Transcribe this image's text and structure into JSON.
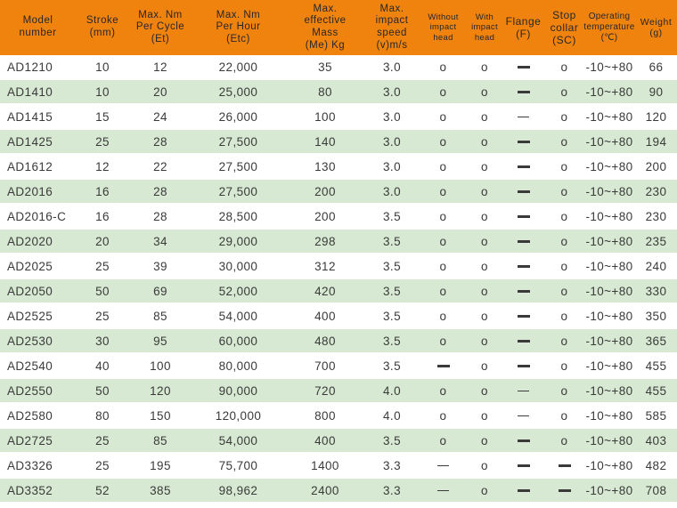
{
  "colors": {
    "header_bg": "#F0830D",
    "header_text": "#26272E",
    "body_text": "#3A3A3A",
    "row_alt_bg": "#D7E9D2",
    "row_bg": "#FFFFFF"
  },
  "marks": {
    "o": "o",
    "dash": "—",
    "dash_thin": "—"
  },
  "table": {
    "columns": [
      {
        "id": "model-number",
        "label": "Model\nnumber"
      },
      {
        "id": "stroke",
        "label": "Stroke\n(mm)"
      },
      {
        "id": "max-nm-per-cycle",
        "label": "Max. Nm\nPer Cycle\n(Et)"
      },
      {
        "id": "max-nm-per-hour",
        "label": "Max. Nm\nPer Hour\n(Etc)"
      },
      {
        "id": "max-effective-mass",
        "label": "Max.\neffective\nMass\n(Me) Kg"
      },
      {
        "id": "max-impact-speed",
        "label": "Max.\nimpact\nspeed\n(v)m/s"
      },
      {
        "id": "without-impact-head",
        "label": "Without\nimpact\nhead"
      },
      {
        "id": "with-impact-head",
        "label": "With\nimpact\nhead"
      },
      {
        "id": "flange",
        "label": "Flange\n(F)"
      },
      {
        "id": "stop-collar",
        "label": "Stop\ncollar\n(SC)"
      },
      {
        "id": "operating-temperature",
        "label": "Operating\ntemperature\n(℃)"
      },
      {
        "id": "weight",
        "label": "Weight\n(g)"
      }
    ],
    "rows": [
      [
        "AD1210",
        "10",
        "12",
        "22,000",
        "35",
        "3.0",
        "o",
        "o",
        "dash",
        "o",
        "-10~+80",
        "66"
      ],
      [
        "AD1410",
        "10",
        "20",
        "25,000",
        "80",
        "3.0",
        "o",
        "o",
        "dash",
        "o",
        "-10~+80",
        "90"
      ],
      [
        "AD1415",
        "15",
        "24",
        "26,000",
        "100",
        "3.0",
        "o",
        "o",
        "dash_thin",
        "o",
        "-10~+80",
        "120"
      ],
      [
        "AD1425",
        "25",
        "28",
        "27,500",
        "140",
        "3.0",
        "o",
        "o",
        "dash",
        "o",
        "-10~+80",
        "194"
      ],
      [
        "AD1612",
        "12",
        "22",
        "27,500",
        "130",
        "3.0",
        "o",
        "o",
        "dash",
        "o",
        "-10~+80",
        "200"
      ],
      [
        "AD2016",
        "16",
        "28",
        "27,500",
        "200",
        "3.0",
        "o",
        "o",
        "dash",
        "o",
        "-10~+80",
        "230"
      ],
      [
        "AD2016-C",
        "16",
        "28",
        "28,500",
        "200",
        "3.5",
        "o",
        "o",
        "dash",
        "o",
        "-10~+80",
        "230"
      ],
      [
        "AD2020",
        "20",
        "34",
        "29,000",
        "298",
        "3.5",
        "o",
        "o",
        "dash",
        "o",
        "-10~+80",
        "235"
      ],
      [
        "AD2025",
        "25",
        "39",
        "30,000",
        "312",
        "3.5",
        "o",
        "o",
        "dash",
        "o",
        "-10~+80",
        "240"
      ],
      [
        "AD2050",
        "50",
        "69",
        "52,000",
        "420",
        "3.5",
        "o",
        "o",
        "dash",
        "o",
        "-10~+80",
        "330"
      ],
      [
        "AD2525",
        "25",
        "85",
        "54,000",
        "400",
        "3.5",
        "o",
        "o",
        "dash",
        "o",
        "-10~+80",
        "350"
      ],
      [
        "AD2530",
        "30",
        "95",
        "60,000",
        "480",
        "3.5",
        "o",
        "o",
        "dash",
        "o",
        "-10~+80",
        "365"
      ],
      [
        "AD2540",
        "40",
        "100",
        "80,000",
        "700",
        "3.5",
        "dash",
        "o",
        "dash",
        "o",
        "-10~+80",
        "455"
      ],
      [
        "AD2550",
        "50",
        "120",
        "90,000",
        "720",
        "4.0",
        "o",
        "o",
        "dash_thin",
        "o",
        "-10~+80",
        "455"
      ],
      [
        "AD2580",
        "80",
        "150",
        "120,000",
        "800",
        "4.0",
        "o",
        "o",
        "dash_thin",
        "o",
        "-10~+80",
        "585"
      ],
      [
        "AD2725",
        "25",
        "85",
        "54,000",
        "400",
        "3.5",
        "o",
        "o",
        "dash",
        "o",
        "-10~+80",
        "403"
      ],
      [
        "AD3326",
        "25",
        "195",
        "75,700",
        "1400",
        "3.3",
        "dash_thin",
        "o",
        "dash",
        "dash",
        "-10~+80",
        "482"
      ],
      [
        "AD3352",
        "52",
        "385",
        "98,962",
        "2400",
        "3.3",
        "dash_thin",
        "o",
        "dash",
        "dash",
        "-10~+80",
        "708"
      ]
    ]
  }
}
